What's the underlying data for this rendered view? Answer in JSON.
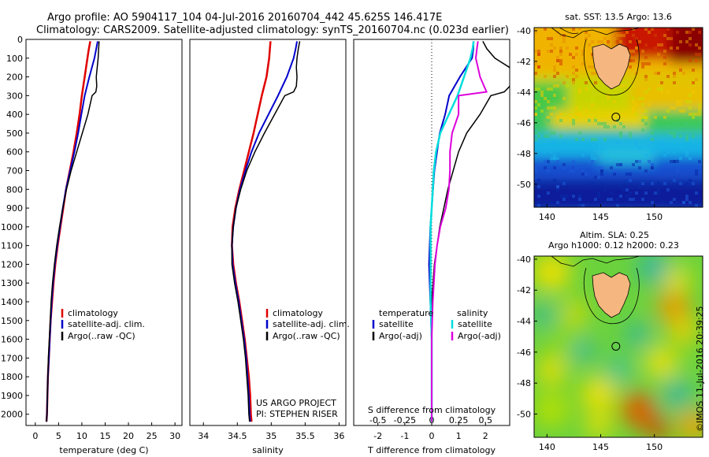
{
  "header": {
    "line1": "Argo profile: AO 5904117_104 04-Jul-2016 20160704_442 45.625S 146.417E",
    "line2": "Climatology: CARS2009. Satellite-adjusted climatology: synTS_20160704.nc (0.023d earlier)"
  },
  "side_text": "©IMOS 11-Jul-2016 20:39:25",
  "colors": {
    "climatology": "#e00000",
    "satellite": "#0000cc",
    "argo": "#000000",
    "sat_salinity": "#00dddd",
    "argo_salinity": "#dd00dd",
    "land": "#f5b77f"
  },
  "chart_data": [
    {
      "type": "line",
      "xlabel": "temperature (deg C)",
      "ylabel": "",
      "xlim": [
        -2,
        31.5
      ],
      "ylim": [
        2060,
        0
      ],
      "xticks": [
        "0",
        "5",
        "10",
        "15",
        "20",
        "25",
        "30"
      ],
      "yticks": [
        "0",
        "100",
        "200",
        "300",
        "400",
        "500",
        "600",
        "700",
        "800",
        "900",
        "1000",
        "1100",
        "1200",
        "1300",
        "1400",
        "1500",
        "1600",
        "1700",
        "1800",
        "1900",
        "2000"
      ],
      "legend": [
        "climatology",
        "satellite-adj. clim.",
        "Argo(..raw -QC)"
      ],
      "series": [
        {
          "name": "climatology",
          "depth": [
            10,
            50,
            100,
            200,
            300,
            400,
            500,
            600,
            700,
            800,
            900,
            1000,
            1100,
            1200,
            1300,
            1400,
            1500,
            1600,
            1700,
            1800,
            1900,
            2000,
            2040
          ],
          "values": [
            11.8,
            11.5,
            11.2,
            10.6,
            10.0,
            9.5,
            8.9,
            8.2,
            7.4,
            6.6,
            6.0,
            5.4,
            4.8,
            4.3,
            3.9,
            3.6,
            3.3,
            3.1,
            2.9,
            2.7,
            2.6,
            2.5,
            2.4
          ]
        },
        {
          "name": "satellite-adj. clim.",
          "depth": [
            10,
            50,
            100,
            200,
            300,
            400,
            500,
            600,
            700,
            800,
            900,
            1000,
            1100,
            1200,
            1300,
            1400,
            1500,
            1600,
            1700,
            1800,
            1900,
            2000,
            2040
          ],
          "values": [
            13.4,
            13.1,
            12.7,
            11.6,
            10.6,
            9.9,
            9.2,
            8.4,
            7.5,
            6.6,
            5.9,
            5.3,
            4.7,
            4.2,
            3.8,
            3.5,
            3.3,
            3.1,
            2.9,
            2.7,
            2.6,
            2.5,
            2.4
          ]
        },
        {
          "name": "Argo(..raw -QC)",
          "depth": [
            10,
            50,
            100,
            150,
            200,
            250,
            280,
            300,
            400,
            500,
            600,
            700,
            800,
            900,
            1000,
            1100,
            1200,
            1300,
            1400,
            1500,
            1600,
            1700,
            1800,
            1900,
            2000,
            2040
          ],
          "values": [
            13.7,
            13.6,
            13.5,
            13.3,
            13.1,
            13.2,
            13.0,
            12.2,
            11.3,
            10.1,
            8.9,
            7.7,
            6.7,
            5.9,
            5.2,
            4.6,
            4.1,
            3.7,
            3.4,
            3.2,
            3.0,
            2.8,
            2.7,
            2.6,
            2.5,
            2.4
          ]
        }
      ]
    },
    {
      "type": "line",
      "xlabel": "salinity",
      "xlim": [
        33.8,
        36.1
      ],
      "ylim": [
        2060,
        0
      ],
      "xticks": [
        "34",
        "34.5",
        "35",
        "35.5",
        "36"
      ],
      "legend": [
        "climatology",
        "satellite-adj. clim.",
        "Argo(..raw -QC)"
      ],
      "annotations": [
        "US ARGO PROJECT",
        "PI: STEPHEN RISER"
      ],
      "series": [
        {
          "name": "climatology",
          "depth": [
            10,
            50,
            100,
            200,
            300,
            400,
            500,
            600,
            700,
            800,
            900,
            1000,
            1100,
            1200,
            1300,
            1400,
            1500,
            1600,
            1700,
            1800,
            1900,
            2000,
            2040
          ],
          "values": [
            34.99,
            34.98,
            34.97,
            34.93,
            34.86,
            34.8,
            34.74,
            34.67,
            34.6,
            34.53,
            34.47,
            34.43,
            34.42,
            34.44,
            34.48,
            34.53,
            34.57,
            34.61,
            34.64,
            34.67,
            34.69,
            34.7,
            34.71
          ]
        },
        {
          "name": "satellite-adj. clim.",
          "depth": [
            10,
            50,
            100,
            200,
            300,
            400,
            500,
            600,
            700,
            800,
            900,
            1000,
            1100,
            1200,
            1300,
            1400,
            1500,
            1600,
            1700,
            1800,
            1900,
            2000,
            2040
          ],
          "values": [
            35.38,
            35.36,
            35.33,
            35.23,
            35.1,
            34.96,
            34.82,
            34.71,
            34.62,
            34.54,
            34.48,
            34.44,
            34.42,
            34.43,
            34.47,
            34.52,
            34.56,
            34.6,
            34.63,
            34.65,
            34.67,
            34.68,
            34.69
          ]
        },
        {
          "name": "Argo(..raw -QC)",
          "depth": [
            10,
            50,
            100,
            150,
            200,
            250,
            280,
            300,
            400,
            500,
            600,
            700,
            800,
            900,
            1000,
            1100,
            1200,
            1300,
            1400,
            1500,
            1600,
            1700,
            1800,
            1900,
            2000,
            2040
          ],
          "values": [
            35.42,
            35.4,
            35.38,
            35.37,
            35.38,
            35.37,
            35.33,
            35.2,
            35.05,
            34.9,
            34.76,
            34.64,
            34.55,
            34.48,
            34.44,
            34.42,
            34.42,
            34.46,
            34.51,
            34.55,
            34.59,
            34.62,
            34.64,
            34.66,
            34.67,
            34.68
          ]
        }
      ]
    },
    {
      "type": "line",
      "xlabel": "T difference from climatology",
      "x2label": "S difference from climatology",
      "xlim": [
        -2.9,
        2.9
      ],
      "ylim": [
        2060,
        0
      ],
      "xticks": [
        "-2",
        "-1",
        "0",
        "1",
        "2"
      ],
      "x2ticks": [
        "-0.5",
        "-0.25",
        "0",
        "0.25",
        "0.5"
      ],
      "legend_titles": [
        "temperature",
        "salinity"
      ],
      "legend": [
        "satellite",
        "Argo(-adj)",
        "satellite",
        "Argo(-adj)"
      ],
      "series": [
        {
          "name": "satellite",
          "depth": [
            10,
            50,
            100,
            200,
            300,
            400,
            500,
            600,
            700,
            800,
            900,
            1000,
            1200,
            1400,
            1600,
            1800,
            2000,
            2040
          ],
          "values": [
            1.55,
            1.55,
            1.5,
            1.05,
            0.65,
            0.5,
            0.3,
            0.2,
            0.1,
            0.05,
            0.0,
            -0.05,
            -0.1,
            -0.05,
            0.0,
            0.0,
            0.0,
            0.0
          ]
        },
        {
          "name": "Argo(-adj)",
          "depth": [
            10,
            50,
            100,
            150,
            200,
            250,
            280,
            300,
            400,
            500,
            600,
            700,
            800,
            900,
            1000,
            1100,
            1200,
            1300,
            1400,
            1500,
            1600,
            1800,
            2000,
            2040
          ],
          "values": [
            1.9,
            2.05,
            2.35,
            2.9,
            2.95,
            2.9,
            2.7,
            2.2,
            1.8,
            1.3,
            1.0,
            0.8,
            0.6,
            0.45,
            0.3,
            0.2,
            0.1,
            0.05,
            0.0,
            0.0,
            0.0,
            0.0,
            0.0,
            0.0
          ]
        },
        {
          "name": "satellite",
          "depth": [
            10,
            50,
            100,
            200,
            300,
            400,
            500,
            600,
            700,
            800,
            900,
            1000,
            1200,
            1400,
            1600,
            1800,
            2000,
            2040
          ],
          "values": [
            0.39,
            0.38,
            0.36,
            0.3,
            0.24,
            0.16,
            0.08,
            0.04,
            0.02,
            0.01,
            0.0,
            -0.01,
            -0.01,
            -0.01,
            0.0,
            0.0,
            0.0,
            0.0
          ]
        },
        {
          "name": "Argo(-adj)",
          "depth": [
            10,
            50,
            100,
            200,
            280,
            300,
            400,
            500,
            600,
            700,
            800,
            900,
            1000,
            1100,
            1200,
            1400,
            1600,
            1800,
            2000,
            2040
          ],
          "values": [
            0.43,
            0.42,
            0.41,
            0.45,
            0.51,
            0.25,
            0.25,
            0.19,
            0.17,
            0.17,
            0.16,
            0.13,
            0.08,
            0.05,
            0.03,
            0.01,
            0.0,
            0.0,
            0.0,
            0.0
          ]
        }
      ]
    },
    {
      "type": "heatmap",
      "title": "sat. SST: 13.5 Argo: 13.6",
      "xlim": [
        138.8,
        154.5
      ],
      "ylim": [
        -51.5,
        -39.8
      ],
      "xticks": [
        "140",
        "145",
        "150"
      ],
      "yticks": [
        "-40",
        "-42",
        "-44",
        "-46",
        "-48",
        "-50"
      ],
      "marker": {
        "lon": 146.417,
        "lat": -45.625
      }
    },
    {
      "type": "heatmap",
      "title": "Altim. SLA: 0.25",
      "subtitle": "Argo h1000: 0.12 h2000: 0.23",
      "xlim": [
        138.8,
        154.5
      ],
      "ylim": [
        -51.5,
        -39.8
      ],
      "xticks": [
        "140",
        "145",
        "150"
      ],
      "yticks": [
        "-40",
        "-42",
        "-44",
        "-46",
        "-48",
        "-50"
      ],
      "marker": {
        "lon": 146.417,
        "lat": -45.625
      }
    }
  ]
}
